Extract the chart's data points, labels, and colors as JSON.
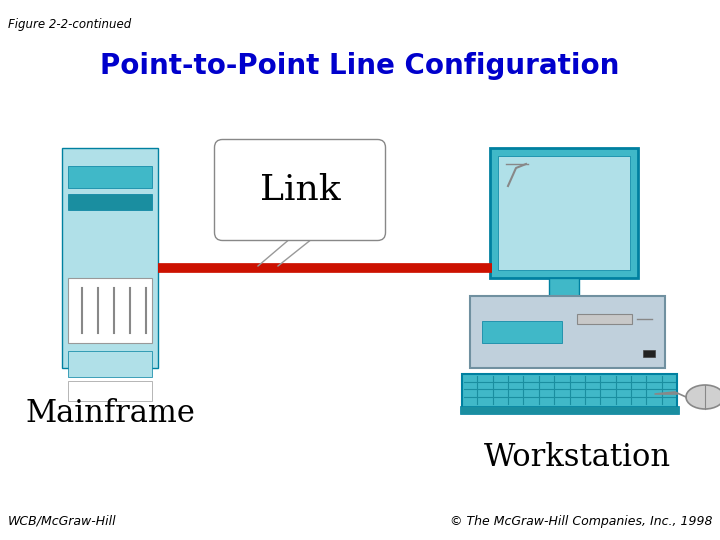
{
  "fig_label": "Figure 2-2-continued",
  "title": "Point-to-Point Line Configuration",
  "title_color": "#0000CC",
  "title_fontsize": 20,
  "label_mainframe": "Mainframe",
  "label_workstation": "Workstation",
  "label_link": "Link",
  "footer_left": "WCB/McGraw-Hill",
  "footer_right": "© The McGraw-Hill Companies, Inc., 1998",
  "bg_color": "#ffffff",
  "link_color": "#CC1100",
  "teal_light": "#B0E0E8",
  "teal_mid": "#40B8C8",
  "teal_dark": "#1A8EA0",
  "teal_border": "#0080A0",
  "gray_light": "#C0D0DC",
  "gray_mid": "#A0B0C0",
  "gray_border": "#7090A0"
}
